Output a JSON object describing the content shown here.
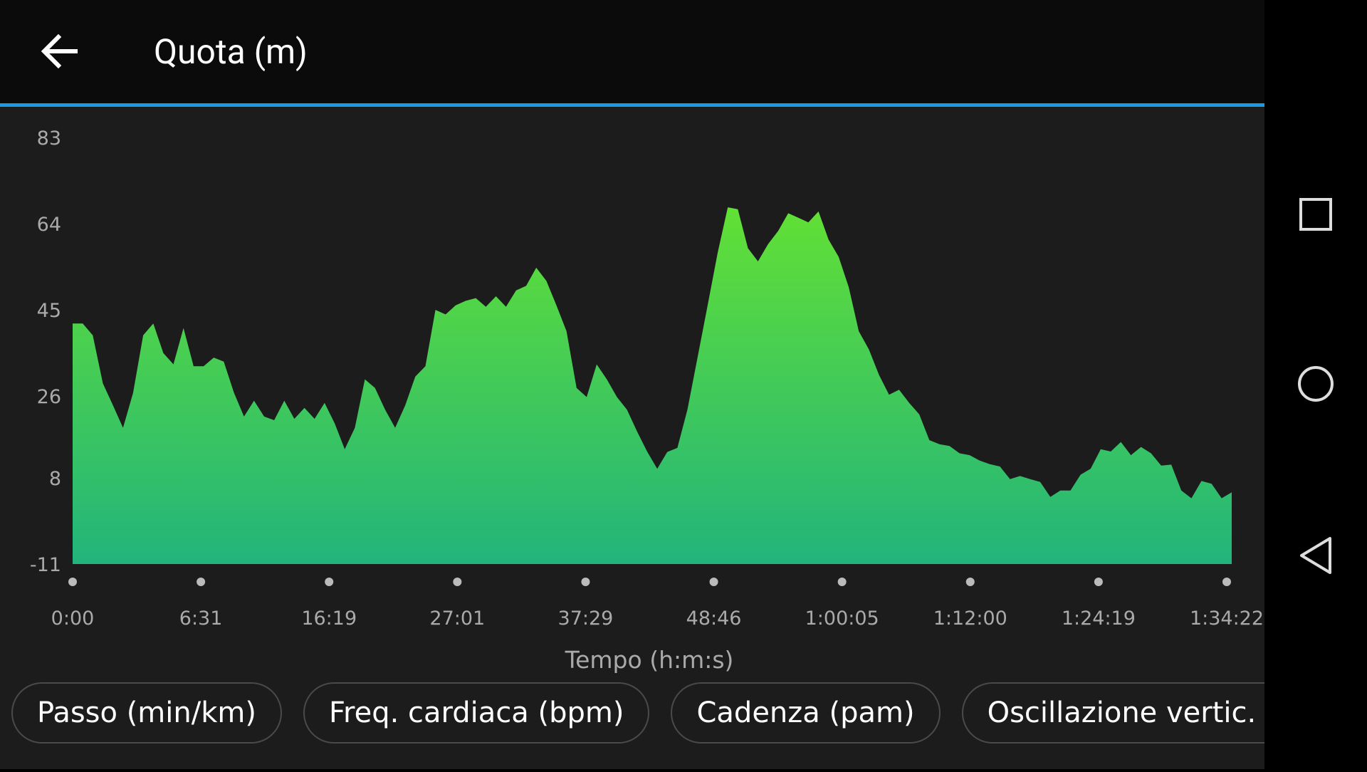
{
  "header": {
    "title": "Quota (m)"
  },
  "chart_data": {
    "type": "area",
    "values": [
      42,
      42,
      39.4,
      28.8,
      24,
      19,
      26.7,
      39.4,
      42,
      35.5,
      33,
      41,
      32.6,
      32.6,
      34.5,
      33.6,
      26.8,
      21.5,
      25,
      21.5,
      20.7,
      25,
      21,
      23.4,
      21,
      24.5,
      20,
      14.3,
      19,
      29.7,
      27.8,
      23,
      19,
      24,
      30.3,
      32.6,
      45,
      44,
      46,
      47,
      47.6,
      45.7,
      48,
      45.7,
      49.3,
      50.3,
      54.3,
      51.4,
      46,
      40.3,
      27.8,
      25.8,
      33,
      29.7,
      25.8,
      23,
      18.2,
      13.8,
      10,
      13.7,
      14.6,
      23,
      34.5,
      46,
      57.6,
      67.6,
      67.2,
      58.6,
      55.7,
      59.5,
      62.4,
      66.3,
      65.3,
      64.3,
      66.7,
      60.5,
      56.7,
      50,
      40.3,
      36.3,
      30.7,
      26.3,
      27.4,
      24.5,
      22,
      16.3,
      15.4,
      15,
      13.4,
      13,
      11.8,
      11,
      10.5,
      7.7,
      8.4,
      7.7,
      7.1,
      3.8,
      5.2,
      5.2,
      8.7,
      10,
      14.3,
      13.8,
      15.9,
      13,
      14.8,
      13.4,
      10.7,
      10.9,
      5.2,
      3.5,
      7.3,
      6.7,
      3.5,
      4.8
    ],
    "x_labels": [
      "0:00",
      "6:31",
      "16:19",
      "27:01",
      "37:29",
      "48:46",
      "1:00:05",
      "1:12:00",
      "1:24:19",
      "1:34:22"
    ],
    "xlabel": "Tempo (h:m:s)",
    "ylim": [
      -11,
      83
    ],
    "yticks": [
      83,
      64,
      45,
      26,
      8,
      -11
    ],
    "color_top": "#62e035",
    "color_bottom": "#22b47c"
  },
  "buttons": [
    "Passo (min/km)",
    "Freq. cardiaca (bpm)",
    "Cadenza (pam)",
    "Oscillazione vertic. (cm)"
  ]
}
